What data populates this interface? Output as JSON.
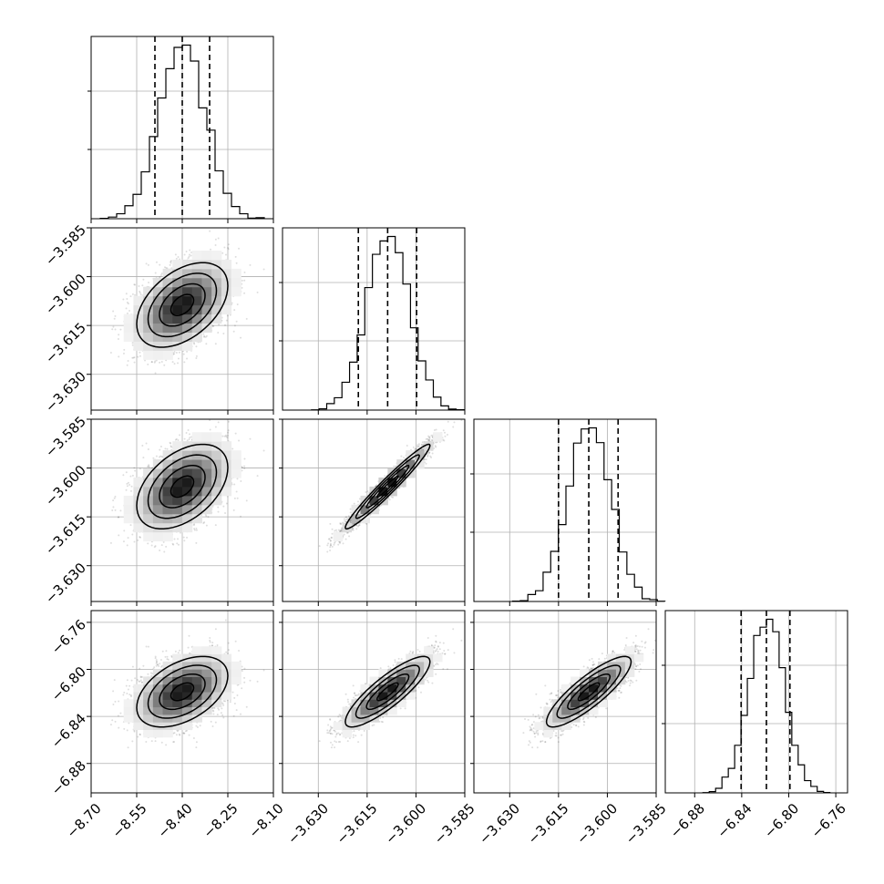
{
  "chart_data": {
    "type": "corner",
    "grid": true,
    "parameters": [
      {
        "range": [
          -8.7,
          -8.1
        ],
        "ticks": [
          "−8.70",
          "−8.55",
          "−8.40",
          "−8.25",
          "−8.10"
        ],
        "tick_values": [
          -8.7,
          -8.55,
          -8.4,
          -8.25,
          -8.1
        ],
        "quantiles": [
          -8.49,
          -8.4,
          -8.31
        ],
        "mean": -8.4,
        "sd": 0.075
      },
      {
        "range": [
          -3.641,
          -3.585
        ],
        "ticks": [
          "−3.585",
          "−3.600",
          "−3.615",
          "−3.630"
        ],
        "tick_values": [
          -3.585,
          -3.6,
          -3.615,
          -3.63
        ],
        "xticks": [
          "−3.630",
          "−3.615",
          "−3.600",
          "−3.585"
        ],
        "xtick_values": [
          -3.63,
          -3.615,
          -3.6,
          -3.585
        ],
        "quantiles": [
          -3.6177,
          -3.6087,
          -3.5998
        ],
        "mean": -3.6087,
        "sd": 0.0065
      },
      {
        "range": [
          -3.641,
          -3.585
        ],
        "ticks": [
          "−3.585",
          "−3.600",
          "−3.615",
          "−3.630"
        ],
        "tick_values": [
          -3.585,
          -3.6,
          -3.615,
          -3.63
        ],
        "xticks": [
          "−3.630",
          "−3.615",
          "−3.600",
          "−3.585"
        ],
        "xtick_values": [
          -3.63,
          -3.615,
          -3.6,
          -3.585
        ],
        "quantiles": [
          -3.615,
          -3.6057,
          -3.5967
        ],
        "mean": -3.6057,
        "sd": 0.0065
      },
      {
        "range": [
          -6.905,
          -6.75
        ],
        "ticks": [
          "−6.76",
          "−6.80",
          "−6.84",
          "−6.88"
        ],
        "tick_values": [
          -6.76,
          -6.8,
          -6.84,
          -6.88
        ],
        "xticks": [
          "−6.88",
          "−6.84",
          "−6.80",
          "−6.76"
        ],
        "xtick_values": [
          -6.88,
          -6.84,
          -6.8,
          -6.76
        ],
        "quantiles": [
          -6.8405,
          -6.819,
          -6.799
        ],
        "mean": -6.819,
        "sd": 0.015
      }
    ],
    "correlations": [
      [
        0,
        1,
        0.45
      ],
      [
        0,
        2,
        0.45
      ],
      [
        0,
        3,
        0.45
      ],
      [
        1,
        2,
        0.97
      ],
      [
        1,
        3,
        0.85
      ],
      [
        2,
        3,
        0.85
      ]
    ]
  }
}
